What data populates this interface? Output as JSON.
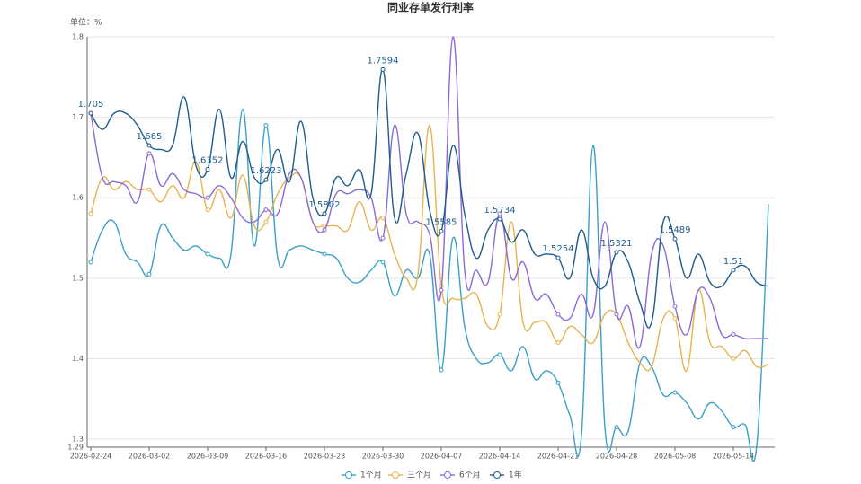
{
  "chart_data": {
    "type": "line",
    "title": "同业存单发行利率",
    "y_axis_label": "单位：%",
    "categories": [
      "2026-02-24",
      null,
      null,
      null,
      null,
      "2026-03-02",
      null,
      null,
      null,
      null,
      "2026-03-09",
      null,
      null,
      null,
      null,
      "2026-03-16",
      null,
      null,
      null,
      null,
      "2026-03-23",
      null,
      null,
      null,
      null,
      "2026-03-30",
      null,
      null,
      null,
      null,
      "2026-04-07",
      null,
      null,
      null,
      null,
      "2026-04-14",
      null,
      null,
      null,
      null,
      "2026-04-21",
      null,
      null,
      null,
      null,
      "2026-04-28",
      null,
      null,
      null,
      null,
      "2026-05-08",
      null,
      null,
      null,
      null,
      "2026-05-14",
      null,
      null,
      null
    ],
    "ylim": [
      1.29,
      1.8
    ],
    "yticks": [
      1.29,
      1.3,
      1.4,
      1.5,
      1.6,
      1.7,
      1.8
    ],
    "grid": true,
    "series": [
      {
        "name": "1个月",
        "color": "#3aa0c8",
        "values": [
          1.52,
          1.56,
          1.57,
          1.53,
          1.52,
          1.505,
          1.565,
          1.55,
          1.535,
          1.54,
          1.53,
          1.525,
          1.53,
          1.71,
          1.54,
          1.69,
          1.525,
          1.535,
          1.54,
          1.535,
          1.53,
          1.525,
          1.5,
          1.495,
          1.51,
          1.52,
          1.478,
          1.51,
          1.5,
          1.53,
          1.386,
          1.55,
          1.44,
          1.4,
          1.395,
          1.405,
          1.385,
          1.415,
          1.375,
          1.385,
          1.37,
          1.33,
          1.305,
          1.665,
          1.315,
          1.315,
          1.31,
          1.395,
          1.39,
          1.355,
          1.358,
          1.345,
          1.325,
          1.345,
          1.335,
          1.315,
          1.318,
          1.292,
          1.592
        ]
      },
      {
        "name": "三个月",
        "color": "#e6b34f",
        "values": [
          1.58,
          1.625,
          1.61,
          1.62,
          1.61,
          1.61,
          1.595,
          1.615,
          1.6,
          1.645,
          1.585,
          1.61,
          1.575,
          1.628,
          1.565,
          1.57,
          1.605,
          1.625,
          1.625,
          1.57,
          1.565,
          1.565,
          1.56,
          1.595,
          1.56,
          1.575,
          1.53,
          1.5,
          1.505,
          1.69,
          1.49,
          1.475,
          1.475,
          1.48,
          1.44,
          1.455,
          1.57,
          1.445,
          1.445,
          1.445,
          1.42,
          1.44,
          1.43,
          1.42,
          1.455,
          1.455,
          1.42,
          1.395,
          1.39,
          1.45,
          1.45,
          1.385,
          1.485,
          1.42,
          1.415,
          1.4,
          1.41,
          1.39,
          1.393
        ]
      },
      {
        "name": "6个月",
        "color": "#8c6ad4",
        "values": [
          1.705,
          1.625,
          1.62,
          1.615,
          1.595,
          1.655,
          1.615,
          1.63,
          1.61,
          1.605,
          1.6,
          1.615,
          1.6,
          1.575,
          1.57,
          1.585,
          1.58,
          1.63,
          1.625,
          1.57,
          1.56,
          1.605,
          1.605,
          1.61,
          1.6,
          1.55,
          1.69,
          1.58,
          1.57,
          1.555,
          1.485,
          1.8,
          1.51,
          1.51,
          1.495,
          1.58,
          1.5,
          1.52,
          1.475,
          1.48,
          1.455,
          1.45,
          1.48,
          1.455,
          1.57,
          1.455,
          1.465,
          1.415,
          1.53,
          1.54,
          1.465,
          1.43,
          1.485,
          1.475,
          1.43,
          1.43,
          1.425,
          1.425,
          1.425
        ]
      },
      {
        "name": "1年",
        "color": "#1f5c8c",
        "values": [
          1.705,
          1.685,
          1.705,
          1.705,
          1.69,
          1.665,
          1.66,
          1.665,
          1.725,
          1.64,
          1.6352,
          1.71,
          1.625,
          1.67,
          1.625,
          1.6223,
          1.66,
          1.62,
          1.695,
          1.6,
          1.5802,
          1.625,
          1.615,
          1.635,
          1.605,
          1.7594,
          1.575,
          1.63,
          1.68,
          1.585,
          1.5585,
          1.665,
          1.58,
          1.525,
          1.56,
          1.5734,
          1.545,
          1.56,
          1.53,
          1.53,
          1.5254,
          1.5,
          1.56,
          1.5,
          1.49,
          1.5321,
          1.52,
          1.47,
          1.445,
          1.57,
          1.5489,
          1.5,
          1.53,
          1.495,
          1.49,
          1.51,
          1.515,
          1.495,
          1.49
        ]
      }
    ]
  }
}
